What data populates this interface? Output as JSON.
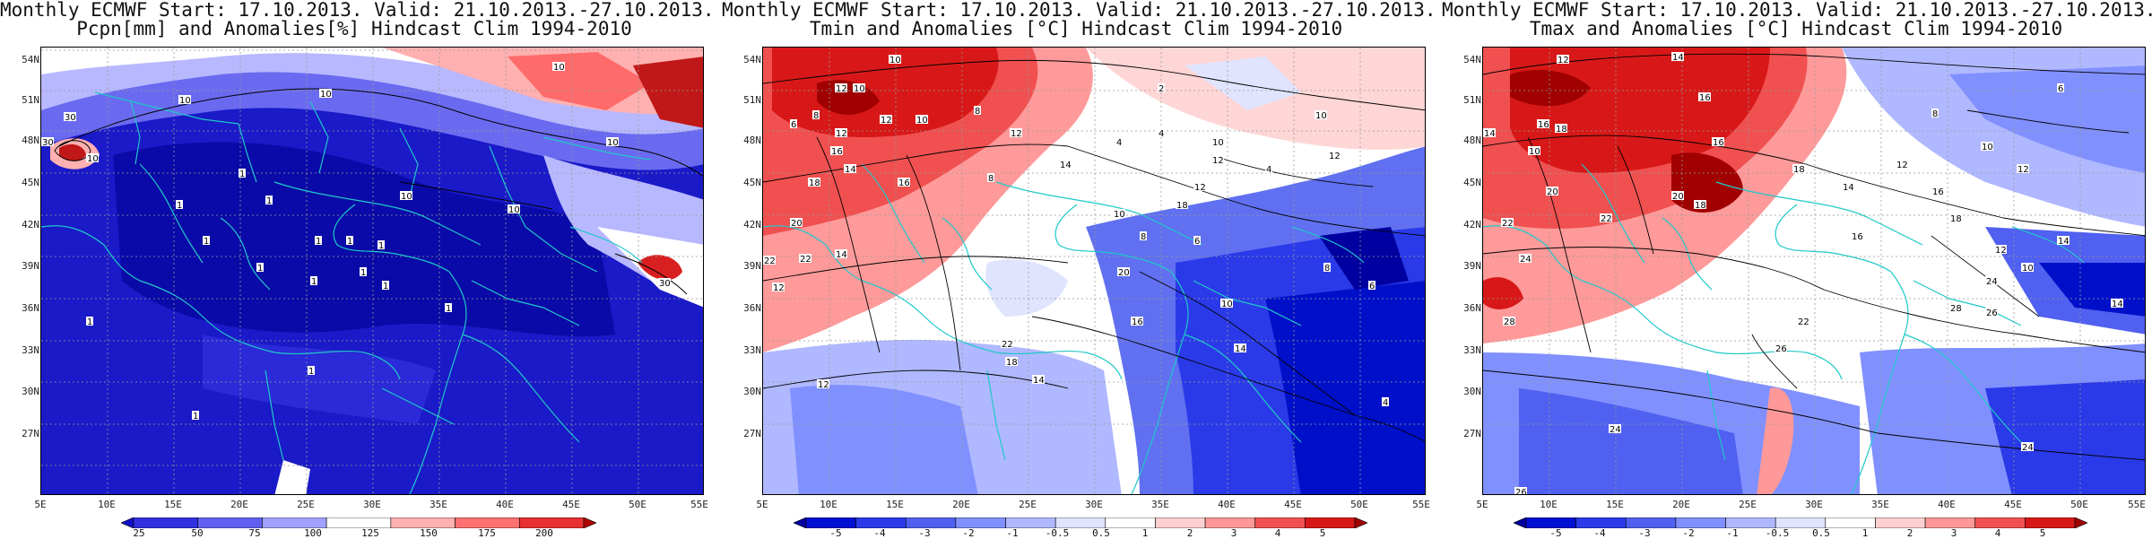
{
  "panels": [
    {
      "id": "pcpn",
      "title_line1": "Monthly ECMWF Start: 17.10.2013. Valid: 21.10.2013.-27.10.2013.",
      "title_line2": "Pcpn[mm] and Anomalies[%] Hindcast Clim 1994-2010",
      "colorbar": {
        "labels": [
          "25",
          "50",
          "75",
          "100",
          "125",
          "150",
          "175",
          "200"
        ],
        "colors": [
          "#1010c8",
          "#3030e0",
          "#6060f0",
          "#a0a0ff",
          "#ffffff",
          "#ffb0b0",
          "#ff7070",
          "#e83030",
          "#b00000"
        ]
      },
      "contour_labels": [
        "10",
        "10",
        "10",
        "10",
        "30",
        "10",
        "30",
        "30",
        "10",
        "1",
        "10",
        "1",
        "1",
        "1",
        "1",
        "1",
        "1",
        "1",
        "1",
        "1",
        "1",
        "1",
        "1",
        "1",
        "1"
      ]
    },
    {
      "id": "tmin",
      "title_line1": "Monthly ECMWF Start: 17.10.2013. Valid: 21.10.2013.-27.10.2013.",
      "title_line2": "Tmin and Anomalies [°C] Hindcast Clim 1994-2010",
      "colorbar": {
        "labels": [
          "-5",
          "-4",
          "-3",
          "-2",
          "-1",
          "-0.5",
          "0.5",
          "1",
          "2",
          "3",
          "4",
          "5"
        ],
        "colors": [
          "#0000a0",
          "#0010d0",
          "#2a3ae8",
          "#5060f0",
          "#8090ff",
          "#b0b8ff",
          "#e0e4ff",
          "#ffffff",
          "#ffd0d0",
          "#ff9898",
          "#f05050",
          "#d81818",
          "#a00000"
        ]
      },
      "contour_labels": [
        "10",
        "12",
        "10",
        "8",
        "6",
        "10",
        "12",
        "12",
        "16",
        "8",
        "8",
        "2",
        "4",
        "4",
        "10",
        "12",
        "12",
        "14",
        "14",
        "16",
        "18",
        "20",
        "22",
        "22",
        "12",
        "14",
        "10",
        "12",
        "18",
        "20",
        "8",
        "6",
        "4",
        "10",
        "12",
        "14",
        "16",
        "18",
        "22",
        "14",
        "12",
        "10",
        "4",
        "6",
        "8"
      ]
    },
    {
      "id": "tmax",
      "title_line1": "Monthly ECMWF Start: 17.10.2013. Valid: 21.10.2013.-27.10.2013.",
      "title_line2": "Tmax and Anomalies [°C] Hindcast Clim 1994-2010",
      "colorbar": {
        "labels": [
          "-5",
          "-4",
          "-3",
          "-2",
          "-1",
          "-0.5",
          "0.5",
          "1",
          "2",
          "3",
          "4",
          "5"
        ],
        "colors": [
          "#0000a0",
          "#0010d0",
          "#2a3ae8",
          "#5060f0",
          "#8090ff",
          "#b0b8ff",
          "#e0e4ff",
          "#ffffff",
          "#ffd0d0",
          "#ff9898",
          "#f05050",
          "#d81818",
          "#a00000"
        ]
      },
      "contour_labels": [
        "12",
        "14",
        "16",
        "18",
        "16",
        "14",
        "10",
        "6",
        "8",
        "10",
        "12",
        "14",
        "16",
        "18",
        "20",
        "22",
        "22",
        "20",
        "18",
        "16",
        "14",
        "12",
        "10",
        "24",
        "24",
        "26",
        "28",
        "26",
        "28",
        "24",
        "26",
        "22",
        "24",
        "18",
        "16",
        "14",
        "12"
      ]
    }
  ],
  "axes": {
    "lat_labels": [
      "54N",
      "51N",
      "48N",
      "45N",
      "42N",
      "39N",
      "36N",
      "33N",
      "30N",
      "27N"
    ],
    "lon_labels": [
      "5E",
      "10E",
      "15E",
      "20E",
      "25E",
      "30E",
      "35E",
      "40E",
      "45E",
      "50E",
      "55E"
    ]
  },
  "colors": {
    "coast": "#20c8c8",
    "contour": "#000000",
    "grid": "#999999"
  }
}
